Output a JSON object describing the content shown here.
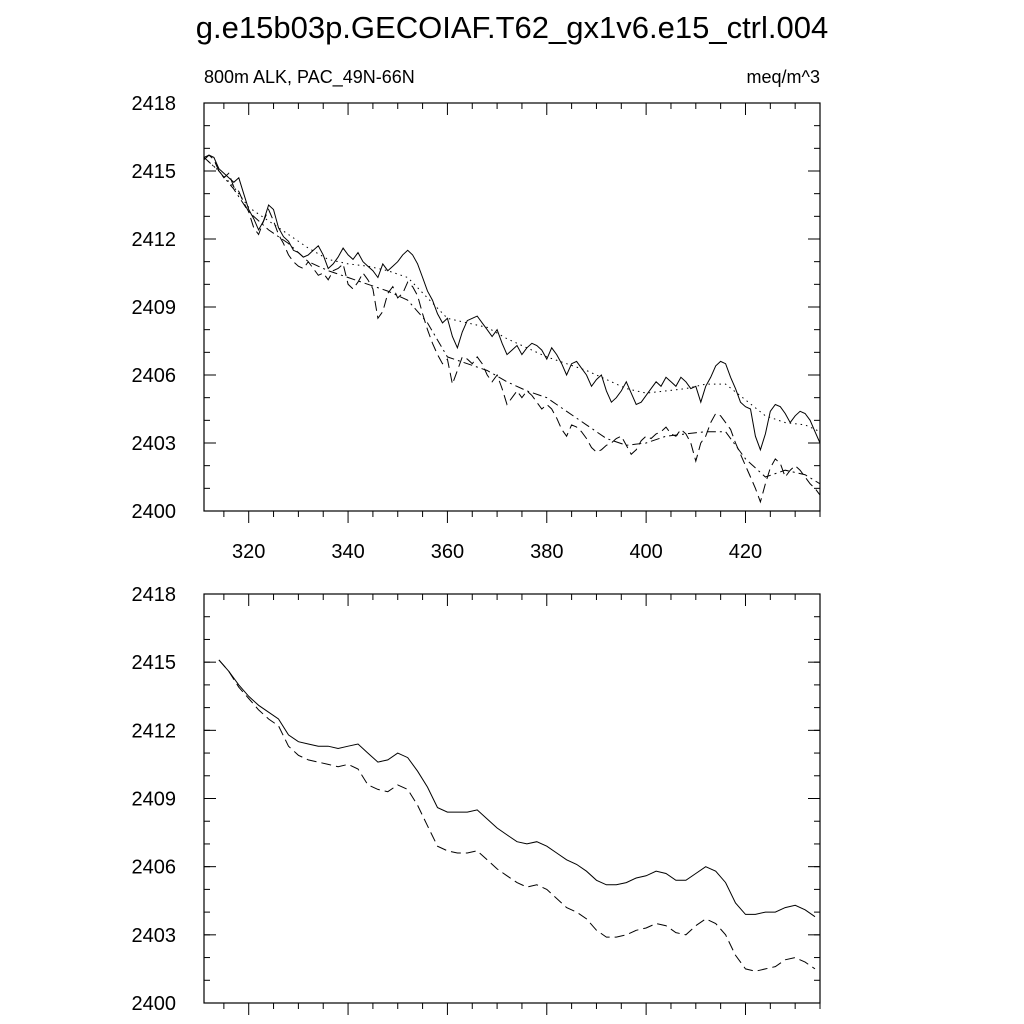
{
  "figure": {
    "title": "g.e15b03p.GECOIAF.T62_gx1v6.e15_ctrl.004",
    "left_label": "800m ALK, PAC_49N-66N",
    "right_label": "meq/m^3"
  },
  "chart_data": [
    {
      "type": "line",
      "xlim": [
        311,
        435
      ],
      "ylim": [
        2400,
        2418
      ],
      "yticks": [
        2400,
        2403,
        2406,
        2409,
        2412,
        2415,
        2418
      ],
      "xticks": [
        320,
        340,
        360,
        380,
        400,
        420
      ],
      "xtick_labels": [
        "320",
        "340",
        "360",
        "380",
        "400",
        "420"
      ],
      "series": [
        {
          "style": "solid",
          "x": [
            311,
            312,
            313,
            314,
            315,
            316,
            317,
            318,
            319,
            320,
            321,
            322,
            323,
            324,
            325,
            326,
            327,
            328,
            329,
            330,
            331,
            332,
            333,
            334,
            335,
            336,
            337,
            338,
            339,
            340,
            341,
            342,
            343,
            344,
            345,
            346,
            347,
            348,
            349,
            350,
            351,
            352,
            353,
            354,
            355,
            356,
            357,
            358,
            359,
            360,
            361,
            362,
            363,
            364,
            365,
            366,
            367,
            368,
            369,
            370,
            371,
            372,
            373,
            374,
            375,
            376,
            377,
            378,
            379,
            380,
            381,
            382,
            383,
            384,
            385,
            386,
            387,
            388,
            389,
            390,
            391,
            392,
            393,
            394,
            395,
            396,
            397,
            398,
            399,
            400,
            401,
            402,
            403,
            404,
            405,
            406,
            407,
            408,
            409,
            410,
            411,
            412,
            413,
            414,
            415,
            416,
            417,
            418,
            419,
            420,
            421,
            422,
            423,
            424,
            425,
            426,
            427,
            428,
            429,
            430,
            431,
            432,
            433,
            434,
            435
          ],
          "y": [
            2415.5,
            2415.7,
            2415.6,
            2415.1,
            2414.9,
            2414.7,
            2414.5,
            2414.7,
            2414.0,
            2413.3,
            2412.9,
            2412.4,
            2412.8,
            2413.5,
            2413.3,
            2412.5,
            2412.1,
            2411.9,
            2411.5,
            2411.4,
            2411.2,
            2411.3,
            2411.5,
            2411.7,
            2411.3,
            2410.7,
            2410.9,
            2411.2,
            2411.6,
            2411.3,
            2411.1,
            2411.4,
            2411.0,
            2410.8,
            2410.6,
            2410.3,
            2410.9,
            2410.6,
            2410.8,
            2411.0,
            2411.3,
            2411.5,
            2411.3,
            2410.9,
            2410.3,
            2409.7,
            2409.3,
            2408.7,
            2408.3,
            2408.5,
            2407.7,
            2407.2,
            2407.9,
            2408.4,
            2408.5,
            2408.6,
            2408.3,
            2408.0,
            2407.7,
            2408.0,
            2407.4,
            2406.9,
            2407.1,
            2407.3,
            2406.9,
            2407.2,
            2407.4,
            2407.3,
            2407.1,
            2406.7,
            2407.2,
            2406.9,
            2406.5,
            2406.0,
            2406.5,
            2406.6,
            2406.3,
            2406.0,
            2405.5,
            2405.8,
            2406.0,
            2405.3,
            2404.8,
            2405.0,
            2405.3,
            2405.7,
            2405.2,
            2404.7,
            2404.8,
            2405.1,
            2405.4,
            2405.7,
            2405.5,
            2405.9,
            2405.7,
            2405.5,
            2405.9,
            2405.7,
            2405.4,
            2405.5,
            2404.8,
            2405.5,
            2405.9,
            2406.4,
            2406.6,
            2406.5,
            2405.9,
            2405.4,
            2404.8,
            2404.6,
            2404.5,
            2403.3,
            2402.7,
            2403.4,
            2404.4,
            2404.7,
            2404.6,
            2404.3,
            2403.9,
            2404.2,
            2404.4,
            2404.3,
            2404.0,
            2403.5,
            2403.0
          ]
        },
        {
          "style": "dashed",
          "x": [
            311,
            312,
            313,
            314,
            315,
            316,
            317,
            318,
            319,
            320,
            321,
            322,
            323,
            324,
            325,
            326,
            327,
            328,
            329,
            330,
            331,
            332,
            333,
            334,
            335,
            336,
            337,
            338,
            339,
            340,
            341,
            342,
            343,
            344,
            345,
            346,
            347,
            348,
            349,
            350,
            351,
            352,
            353,
            354,
            355,
            356,
            357,
            358,
            359,
            360,
            361,
            362,
            363,
            364,
            365,
            366,
            367,
            368,
            369,
            370,
            371,
            372,
            373,
            374,
            375,
            376,
            377,
            378,
            379,
            380,
            381,
            382,
            383,
            384,
            385,
            386,
            387,
            388,
            389,
            390,
            391,
            392,
            393,
            394,
            395,
            396,
            397,
            398,
            399,
            400,
            401,
            402,
            403,
            404,
            405,
            406,
            407,
            408,
            409,
            410,
            411,
            412,
            413,
            414,
            415,
            416,
            417,
            418,
            419,
            420,
            421,
            422,
            423,
            424,
            425,
            426,
            427,
            428,
            429,
            430,
            431,
            432,
            433,
            434,
            435
          ],
          "y": [
            2415.6,
            2415.7,
            2415.5,
            2415.0,
            2414.7,
            2414.9,
            2414.3,
            2414.1,
            2413.6,
            2413.2,
            2412.5,
            2412.2,
            2412.8,
            2413.3,
            2412.8,
            2412.2,
            2411.8,
            2411.3,
            2411.0,
            2410.8,
            2410.7,
            2411.0,
            2410.7,
            2410.4,
            2410.5,
            2410.2,
            2410.6,
            2410.7,
            2410.9,
            2410.0,
            2409.8,
            2410.1,
            2410.5,
            2410.2,
            2409.8,
            2408.5,
            2408.8,
            2409.6,
            2409.9,
            2409.4,
            2409.6,
            2410.1,
            2409.9,
            2409.5,
            2408.7,
            2408.0,
            2407.4,
            2406.9,
            2406.5,
            2406.7,
            2405.6,
            2406.2,
            2406.8,
            2406.7,
            2406.5,
            2406.8,
            2406.5,
            2406.0,
            2405.7,
            2406.0,
            2405.4,
            2404.7,
            2405.0,
            2405.3,
            2405.0,
            2405.3,
            2405.1,
            2404.8,
            2404.5,
            2404.7,
            2404.5,
            2404.1,
            2403.6,
            2403.3,
            2403.8,
            2403.7,
            2403.5,
            2403.2,
            2402.8,
            2402.6,
            2402.7,
            2402.9,
            2403.0,
            2403.2,
            2403.3,
            2402.9,
            2402.5,
            2402.7,
            2403.1,
            2403.3,
            2403.2,
            2403.4,
            2403.5,
            2403.7,
            2403.4,
            2403.3,
            2403.6,
            2403.4,
            2403.0,
            2402.2,
            2403.0,
            2403.3,
            2403.9,
            2404.3,
            2404.2,
            2403.9,
            2403.6,
            2403.0,
            2402.5,
            2402.0,
            2401.5,
            2401.0,
            2400.4,
            2401.2,
            2401.9,
            2402.3,
            2402.1,
            2401.5,
            2401.8,
            2402.0,
            2401.8,
            2401.5,
            2401.2,
            2401.0,
            2400.7
          ]
        },
        {
          "style": "dotted",
          "x": [
            311,
            314,
            317,
            320,
            324,
            328,
            332,
            336,
            340,
            344,
            348,
            352,
            356,
            360,
            364,
            368,
            372,
            376,
            380,
            384,
            388,
            392,
            396,
            400,
            404,
            408,
            412,
            416,
            420,
            424,
            428,
            432,
            435
          ],
          "y": [
            2415.6,
            2415.0,
            2414.3,
            2413.4,
            2412.8,
            2412.2,
            2411.6,
            2411.1,
            2410.9,
            2410.8,
            2410.6,
            2410.3,
            2409.4,
            2408.5,
            2408.3,
            2408.1,
            2407.6,
            2407.2,
            2406.8,
            2406.5,
            2406.2,
            2405.8,
            2405.4,
            2405.2,
            2405.3,
            2405.4,
            2405.6,
            2405.6,
            2404.9,
            2404.2,
            2403.9,
            2403.8,
            2403.5
          ]
        },
        {
          "style": "dashdot",
          "x": [
            311,
            314,
            317,
            320,
            324,
            328,
            332,
            336,
            340,
            344,
            348,
            352,
            356,
            360,
            364,
            368,
            372,
            376,
            380,
            384,
            388,
            392,
            396,
            400,
            404,
            408,
            412,
            416,
            420,
            424,
            428,
            432,
            435
          ],
          "y": [
            2415.6,
            2415.0,
            2414.2,
            2413.2,
            2412.4,
            2411.8,
            2411.0,
            2410.6,
            2410.3,
            2410.0,
            2409.7,
            2409.3,
            2408.3,
            2406.8,
            2406.5,
            2406.2,
            2405.7,
            2405.3,
            2405.0,
            2404.4,
            2403.8,
            2403.2,
            2402.9,
            2403.0,
            2403.3,
            2403.4,
            2403.5,
            2403.5,
            2402.3,
            2401.5,
            2401.8,
            2401.6,
            2401.2
          ]
        }
      ]
    },
    {
      "type": "line",
      "xlim": [
        311,
        435
      ],
      "ylim": [
        2400,
        2418
      ],
      "yticks": [
        2400,
        2403,
        2406,
        2409,
        2412,
        2415,
        2418
      ],
      "xticks": [
        320,
        340,
        360,
        380,
        400,
        420
      ],
      "xtick_labels": [],
      "series": [
        {
          "style": "solid",
          "x": [
            314,
            316,
            318,
            320,
            322,
            324,
            326,
            328,
            330,
            332,
            334,
            336,
            338,
            340,
            342,
            344,
            346,
            348,
            350,
            352,
            354,
            356,
            358,
            360,
            362,
            364,
            366,
            368,
            370,
            372,
            374,
            376,
            378,
            380,
            382,
            384,
            386,
            388,
            390,
            392,
            394,
            396,
            398,
            400,
            402,
            404,
            406,
            408,
            410,
            412,
            414,
            416,
            418,
            420,
            422,
            424,
            426,
            428,
            430,
            432,
            434
          ],
          "y": [
            2415.1,
            2414.6,
            2414.0,
            2413.5,
            2413.1,
            2412.8,
            2412.5,
            2411.8,
            2411.5,
            2411.4,
            2411.3,
            2411.3,
            2411.2,
            2411.3,
            2411.4,
            2411.0,
            2410.6,
            2410.7,
            2411.0,
            2410.8,
            2410.2,
            2409.5,
            2408.6,
            2408.4,
            2408.4,
            2408.4,
            2408.5,
            2408.1,
            2407.7,
            2407.4,
            2407.1,
            2407.0,
            2407.1,
            2406.9,
            2406.6,
            2406.3,
            2406.1,
            2405.8,
            2405.4,
            2405.2,
            2405.2,
            2405.3,
            2405.5,
            2405.6,
            2405.8,
            2405.7,
            2405.4,
            2405.4,
            2405.7,
            2406.0,
            2405.8,
            2405.3,
            2404.4,
            2403.9,
            2403.9,
            2404.0,
            2404.0,
            2404.2,
            2404.3,
            2404.1,
            2403.8
          ]
        },
        {
          "style": "dashed",
          "x": [
            314,
            316,
            318,
            320,
            322,
            324,
            326,
            328,
            330,
            332,
            334,
            336,
            338,
            340,
            342,
            344,
            346,
            348,
            350,
            352,
            354,
            356,
            358,
            360,
            362,
            364,
            366,
            368,
            370,
            372,
            374,
            376,
            378,
            380,
            382,
            384,
            386,
            388,
            390,
            392,
            394,
            396,
            398,
            400,
            402,
            404,
            406,
            408,
            410,
            412,
            414,
            416,
            418,
            420,
            422,
            424,
            426,
            428,
            430,
            432,
            434
          ],
          "y": [
            2415.1,
            2414.6,
            2413.9,
            2413.4,
            2412.9,
            2412.5,
            2412.2,
            2411.3,
            2410.9,
            2410.7,
            2410.6,
            2410.5,
            2410.4,
            2410.5,
            2410.3,
            2409.6,
            2409.4,
            2409.3,
            2409.6,
            2409.4,
            2408.7,
            2407.8,
            2406.9,
            2406.7,
            2406.6,
            2406.6,
            2406.7,
            2406.3,
            2405.9,
            2405.6,
            2405.3,
            2405.1,
            2405.2,
            2405.0,
            2404.6,
            2404.2,
            2404.0,
            2403.7,
            2403.2,
            2402.9,
            2402.9,
            2403.0,
            2403.2,
            2403.3,
            2403.5,
            2403.4,
            2403.1,
            2403.0,
            2403.4,
            2403.7,
            2403.5,
            2403.0,
            2402.1,
            2401.5,
            2401.4,
            2401.5,
            2401.6,
            2401.9,
            2402.0,
            2401.8,
            2401.5
          ]
        }
      ]
    }
  ]
}
